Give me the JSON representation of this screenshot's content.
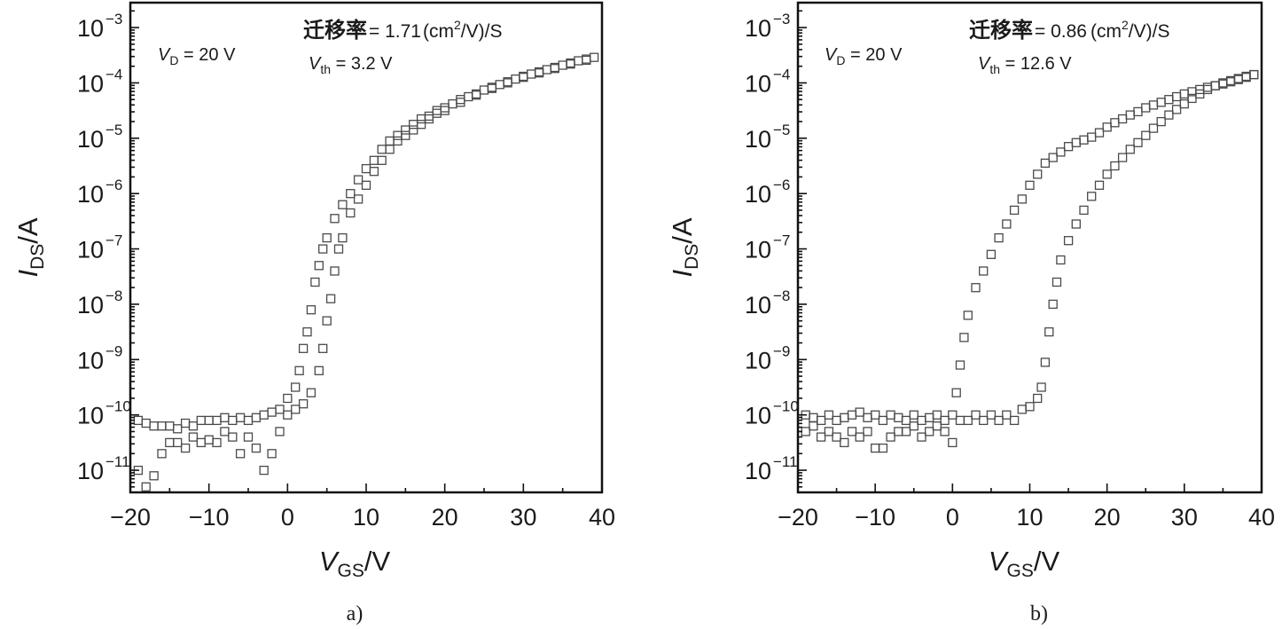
{
  "chart_data": [
    {
      "type": "scatter",
      "panel_label": "a)",
      "xlabel": {
        "main": "V",
        "sub": "GS",
        "unit": "/V"
      },
      "ylabel": {
        "main": "I",
        "sub": "DS",
        "unit": "/A"
      },
      "xlim": [
        -20,
        40
      ],
      "ylim_log10": [
        -11.4,
        -2.55
      ],
      "yscale": "log",
      "x_ticks": [
        "−20",
        "−10",
        "0",
        "10",
        "20",
        "30",
        "40"
      ],
      "x_tick_values": [
        -20,
        -10,
        0,
        10,
        20,
        30,
        40
      ],
      "y_tick_exponents": [
        "−3",
        "−4",
        "−5",
        "−6",
        "−7",
        "−8",
        "−9",
        "−10",
        "−11"
      ],
      "y_tick_values_log10": [
        -3,
        -4,
        -5,
        -6,
        -7,
        -8,
        -9,
        -10,
        -11
      ],
      "y_tick_base": "10",
      "annotations": {
        "vd": {
          "main": "V",
          "sub": "D",
          "rest": " = 20 V"
        },
        "mobility": {
          "label": "迁移率",
          "value": "= 1.71",
          "unit_open": "(cm",
          "unit_sup": "2",
          "unit_close": "/V)/S"
        },
        "vth": {
          "main": "V",
          "sub": "th",
          "rest": " = 3.2 V"
        }
      },
      "series": [
        {
          "points": [
            [
              -20,
              -10.3
            ],
            [
              -19,
              -10.1
            ],
            [
              -18,
              -10.15
            ],
            [
              -17,
              -10.2
            ],
            [
              -16,
              -10.2
            ],
            [
              -15,
              -10.2
            ],
            [
              -14,
              -10.25
            ],
            [
              -13,
              -10.15
            ],
            [
              -12,
              -10.2
            ],
            [
              -11,
              -10.1
            ],
            [
              -10,
              -10.1
            ],
            [
              -9,
              -10.1
            ],
            [
              -8,
              -10.05
            ],
            [
              -7,
              -10.1
            ],
            [
              -6,
              -10.05
            ],
            [
              -5,
              -10.1
            ],
            [
              -4,
              -10.05
            ],
            [
              -3,
              -10.0
            ],
            [
              -2,
              -9.95
            ],
            [
              -1,
              -9.9
            ],
            [
              0,
              -9.7
            ],
            [
              1,
              -9.5
            ],
            [
              1.5,
              -9.2
            ],
            [
              2,
              -8.8
            ],
            [
              2.5,
              -8.5
            ],
            [
              3,
              -8.1
            ],
            [
              3.5,
              -7.6
            ],
            [
              4,
              -7.3
            ],
            [
              4.5,
              -7.0
            ],
            [
              5,
              -6.8
            ],
            [
              6,
              -6.45
            ],
            [
              7,
              -6.2
            ],
            [
              8,
              -6.0
            ],
            [
              9,
              -5.75
            ],
            [
              10,
              -5.55
            ],
            [
              11,
              -5.4
            ],
            [
              12,
              -5.2
            ],
            [
              13,
              -5.05
            ],
            [
              14,
              -4.95
            ],
            [
              15,
              -4.85
            ],
            [
              16,
              -4.75
            ],
            [
              17,
              -4.65
            ],
            [
              18,
              -4.6
            ],
            [
              19,
              -4.5
            ],
            [
              20,
              -4.45
            ],
            [
              21,
              -4.38
            ],
            [
              22,
              -4.3
            ],
            [
              23,
              -4.25
            ],
            [
              24,
              -4.2
            ],
            [
              25,
              -4.13
            ],
            [
              26,
              -4.08
            ],
            [
              27,
              -4.03
            ],
            [
              28,
              -3.98
            ],
            [
              29,
              -3.93
            ],
            [
              30,
              -3.88
            ],
            [
              31,
              -3.84
            ],
            [
              32,
              -3.8
            ],
            [
              33,
              -3.76
            ],
            [
              34,
              -3.72
            ],
            [
              35,
              -3.68
            ],
            [
              36,
              -3.64
            ],
            [
              37,
              -3.6
            ],
            [
              38,
              -3.57
            ],
            [
              39,
              -3.54
            ],
            [
              40,
              -3.5
            ]
          ]
        },
        {
          "points": [
            [
              -20,
              -10.8
            ],
            [
              -19,
              -11.0
            ],
            [
              -18,
              -11.3
            ],
            [
              -17,
              -11.1
            ],
            [
              -16,
              -10.7
            ],
            [
              -15,
              -10.5
            ],
            [
              -14,
              -10.5
            ],
            [
              -13,
              -10.6
            ],
            [
              -12,
              -10.4
            ],
            [
              -11,
              -10.5
            ],
            [
              -10,
              -10.45
            ],
            [
              -9,
              -10.5
            ],
            [
              -8,
              -10.3
            ],
            [
              -7,
              -10.4
            ],
            [
              -6,
              -10.7
            ],
            [
              -5,
              -10.4
            ],
            [
              -4,
              -10.6
            ],
            [
              -3,
              -11.0
            ],
            [
              -2,
              -10.7
            ],
            [
              -1,
              -10.3
            ],
            [
              0,
              -10.0
            ],
            [
              1,
              -9.9
            ],
            [
              2,
              -9.8
            ],
            [
              3,
              -9.6
            ],
            [
              4,
              -9.2
            ],
            [
              4.5,
              -8.8
            ],
            [
              5,
              -8.3
            ],
            [
              5.5,
              -7.9
            ],
            [
              6,
              -7.4
            ],
            [
              6.5,
              -7.0
            ],
            [
              7,
              -6.8
            ],
            [
              8,
              -6.35
            ],
            [
              9,
              -6.1
            ],
            [
              10,
              -5.85
            ],
            [
              11,
              -5.6
            ],
            [
              12,
              -5.4
            ],
            [
              13,
              -5.2
            ],
            [
              14,
              -5.05
            ],
            [
              15,
              -4.95
            ],
            [
              16,
              -4.85
            ],
            [
              17,
              -4.75
            ],
            [
              18,
              -4.65
            ],
            [
              19,
              -4.55
            ],
            [
              20,
              -4.5
            ],
            [
              22,
              -4.35
            ],
            [
              24,
              -4.22
            ],
            [
              26,
              -4.1
            ],
            [
              28,
              -4.0
            ],
            [
              30,
              -3.9
            ],
            [
              32,
              -3.82
            ],
            [
              34,
              -3.74
            ],
            [
              36,
              -3.66
            ],
            [
              38,
              -3.59
            ],
            [
              40,
              -3.52
            ]
          ]
        }
      ]
    },
    {
      "type": "scatter",
      "panel_label": "b)",
      "xlabel": {
        "main": "V",
        "sub": "GS",
        "unit": "/V"
      },
      "ylabel": {
        "main": "I",
        "sub": "DS",
        "unit": "/A"
      },
      "xlim": [
        -20,
        40
      ],
      "ylim_log10": [
        -11.4,
        -2.55
      ],
      "yscale": "log",
      "x_ticks": [
        "−20",
        "−10",
        "0",
        "10",
        "20",
        "30",
        "40"
      ],
      "x_tick_values": [
        -20,
        -10,
        0,
        10,
        20,
        30,
        40
      ],
      "y_tick_exponents": [
        "−3",
        "−4",
        "−5",
        "−6",
        "−7",
        "−8",
        "−9",
        "−10",
        "−11"
      ],
      "y_tick_values_log10": [
        -3,
        -4,
        -5,
        -6,
        -7,
        -8,
        -9,
        -10,
        -11
      ],
      "y_tick_base": "10",
      "annotations": {
        "vd": {
          "main": "V",
          "sub": "D",
          "rest": " = 20 V"
        },
        "mobility": {
          "label": "迁移率",
          "value": "= 0.86",
          "unit_open": "(cm",
          "unit_sup": "2",
          "unit_close": "/V)/S"
        },
        "vth": {
          "main": "V",
          "sub": "th",
          "rest": " = 12.6 V"
        }
      },
      "series": [
        {
          "points": [
            [
              -20,
              -10.1
            ],
            [
              -19,
              -10.0
            ],
            [
              -18,
              -10.05
            ],
            [
              -17,
              -10.1
            ],
            [
              -16,
              -10.0
            ],
            [
              -15,
              -10.1
            ],
            [
              -14,
              -10.05
            ],
            [
              -13,
              -10.0
            ],
            [
              -12,
              -9.95
            ],
            [
              -11,
              -10.05
            ],
            [
              -10,
              -10.0
            ],
            [
              -9,
              -10.1
            ],
            [
              -8,
              -10.0
            ],
            [
              -7,
              -10.05
            ],
            [
              -6,
              -10.1
            ],
            [
              -5,
              -10.0
            ],
            [
              -4,
              -10.1
            ],
            [
              -3,
              -10.05
            ],
            [
              -2,
              -10.0
            ],
            [
              -1,
              -10.1
            ],
            [
              0,
              -10.0
            ],
            [
              0.5,
              -9.6
            ],
            [
              1,
              -9.1
            ],
            [
              1.5,
              -8.6
            ],
            [
              2,
              -8.2
            ],
            [
              3,
              -7.7
            ],
            [
              4,
              -7.4
            ],
            [
              5,
              -7.1
            ],
            [
              6,
              -6.8
            ],
            [
              7,
              -6.55
            ],
            [
              8,
              -6.3
            ],
            [
              9,
              -6.1
            ],
            [
              10,
              -5.85
            ],
            [
              11,
              -5.65
            ],
            [
              12,
              -5.45
            ],
            [
              13,
              -5.35
            ],
            [
              14,
              -5.25
            ],
            [
              15,
              -5.15
            ],
            [
              16,
              -5.08
            ],
            [
              17,
              -5.03
            ],
            [
              18,
              -4.98
            ],
            [
              19,
              -4.9
            ],
            [
              20,
              -4.8
            ],
            [
              21,
              -4.72
            ],
            [
              22,
              -4.65
            ],
            [
              23,
              -4.58
            ],
            [
              24,
              -4.52
            ],
            [
              25,
              -4.45
            ],
            [
              26,
              -4.4
            ],
            [
              27,
              -4.35
            ],
            [
              28,
              -4.3
            ],
            [
              29,
              -4.25
            ],
            [
              30,
              -4.2
            ],
            [
              31,
              -4.16
            ],
            [
              32,
              -4.12
            ],
            [
              33,
              -4.08
            ],
            [
              34,
              -4.05
            ],
            [
              35,
              -4.02
            ],
            [
              36,
              -3.98
            ],
            [
              37,
              -3.94
            ],
            [
              38,
              -3.9
            ],
            [
              39,
              -3.85
            ],
            [
              40,
              -3.8
            ]
          ]
        },
        {
          "points": [
            [
              -20,
              -10.4
            ],
            [
              -19,
              -10.3
            ],
            [
              -18,
              -10.2
            ],
            [
              -17,
              -10.4
            ],
            [
              -16,
              -10.3
            ],
            [
              -15,
              -10.4
            ],
            [
              -14,
              -10.5
            ],
            [
              -13,
              -10.3
            ],
            [
              -12,
              -10.4
            ],
            [
              -11,
              -10.3
            ],
            [
              -10,
              -10.6
            ],
            [
              -9,
              -10.6
            ],
            [
              -8,
              -10.4
            ],
            [
              -7,
              -10.3
            ],
            [
              -6,
              -10.3
            ],
            [
              -5,
              -10.2
            ],
            [
              -4,
              -10.4
            ],
            [
              -3,
              -10.3
            ],
            [
              -2,
              -10.2
            ],
            [
              -1,
              -10.3
            ],
            [
              0,
              -10.5
            ],
            [
              1,
              -10.1
            ],
            [
              2,
              -10.1
            ],
            [
              3,
              -10.0
            ],
            [
              4,
              -10.1
            ],
            [
              5,
              -10.0
            ],
            [
              6,
              -10.1
            ],
            [
              7,
              -10.0
            ],
            [
              8,
              -10.1
            ],
            [
              9,
              -9.9
            ],
            [
              10,
              -9.85
            ],
            [
              11,
              -9.7
            ],
            [
              11.5,
              -9.5
            ],
            [
              12,
              -9.05
            ],
            [
              12.5,
              -8.5
            ],
            [
              13,
              -8.0
            ],
            [
              13.5,
              -7.6
            ],
            [
              14,
              -7.2
            ],
            [
              15,
              -6.85
            ],
            [
              16,
              -6.55
            ],
            [
              17,
              -6.3
            ],
            [
              18,
              -6.05
            ],
            [
              19,
              -5.85
            ],
            [
              20,
              -5.65
            ],
            [
              21,
              -5.5
            ],
            [
              22,
              -5.35
            ],
            [
              23,
              -5.2
            ],
            [
              24,
              -5.08
            ],
            [
              25,
              -4.95
            ],
            [
              26,
              -4.82
            ],
            [
              27,
              -4.7
            ],
            [
              28,
              -4.58
            ],
            [
              29,
              -4.48
            ],
            [
              30,
              -4.38
            ],
            [
              31,
              -4.28
            ],
            [
              32,
              -4.2
            ],
            [
              33,
              -4.12
            ],
            [
              34,
              -4.05
            ],
            [
              35,
              -4.0
            ],
            [
              36,
              -3.96
            ],
            [
              37,
              -3.92
            ],
            [
              38,
              -3.88
            ],
            [
              39,
              -3.85
            ],
            [
              40,
              -3.82
            ]
          ]
        }
      ]
    }
  ]
}
